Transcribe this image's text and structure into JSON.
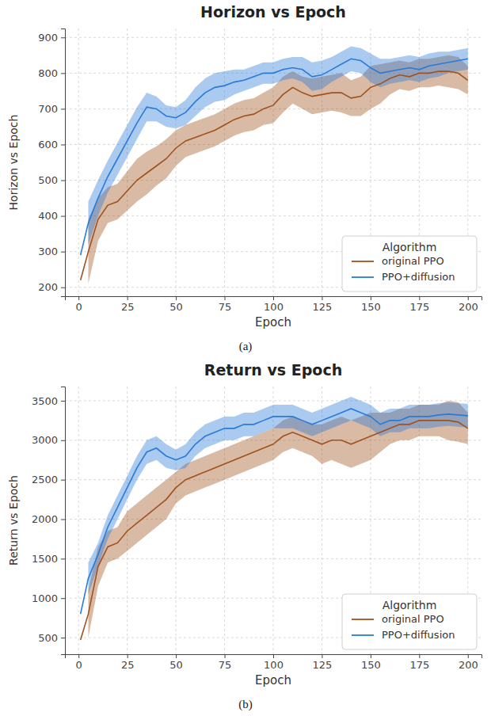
{
  "chart_data": [
    {
      "type": "line",
      "title": "Horizon vs Epoch",
      "x_label": "Epoch",
      "y_label": "Horizon vs Epoch",
      "caption": "(a)",
      "legend_title": "Algorithm",
      "legend": "lower right",
      "grid": true,
      "xlim": [
        -7,
        207
      ],
      "xticks": [
        0,
        25,
        50,
        75,
        100,
        125,
        150,
        175,
        200
      ],
      "ylim": [
        175,
        925
      ],
      "yticks": [
        200,
        300,
        400,
        500,
        600,
        700,
        800,
        900
      ],
      "x": [
        1,
        5,
        10,
        15,
        20,
        25,
        30,
        35,
        40,
        45,
        50,
        55,
        60,
        65,
        70,
        75,
        80,
        85,
        90,
        95,
        100,
        105,
        110,
        115,
        120,
        125,
        130,
        135,
        140,
        145,
        150,
        155,
        160,
        165,
        170,
        175,
        180,
        185,
        190,
        195,
        200
      ],
      "series": [
        {
          "name": "original PPO",
          "color": "#a0521e",
          "values": [
            220,
            300,
            390,
            430,
            440,
            470,
            500,
            520,
            540,
            560,
            590,
            610,
            620,
            630,
            640,
            655,
            670,
            680,
            685,
            700,
            710,
            740,
            760,
            745,
            735,
            740,
            745,
            745,
            730,
            735,
            760,
            770,
            785,
            795,
            790,
            800,
            800,
            805,
            805,
            800,
            780
          ],
          "lower": [
            null,
            210,
            330,
            380,
            390,
            415,
            440,
            460,
            485,
            505,
            540,
            565,
            575,
            585,
            595,
            610,
            625,
            635,
            640,
            655,
            660,
            690,
            715,
            700,
            685,
            690,
            695,
            690,
            680,
            680,
            700,
            715,
            740,
            755,
            750,
            760,
            760,
            765,
            760,
            755,
            740
          ],
          "upper": [
            null,
            390,
            450,
            480,
            490,
            525,
            560,
            580,
            595,
            615,
            640,
            655,
            665,
            675,
            685,
            700,
            715,
            725,
            730,
            745,
            760,
            790,
            805,
            790,
            785,
            790,
            795,
            800,
            780,
            790,
            820,
            825,
            830,
            835,
            830,
            840,
            840,
            845,
            850,
            845,
            820
          ]
        },
        {
          "name": "PPO+diffusion",
          "color": "#2a7ad8",
          "values": [
            290,
            380,
            450,
            510,
            560,
            610,
            660,
            705,
            700,
            680,
            675,
            690,
            720,
            745,
            760,
            765,
            775,
            780,
            790,
            800,
            800,
            810,
            815,
            810,
            790,
            795,
            810,
            825,
            840,
            835,
            815,
            800,
            805,
            810,
            815,
            810,
            820,
            825,
            830,
            835,
            840
          ],
          "lower": [
            null,
            320,
            400,
            465,
            515,
            565,
            615,
            665,
            665,
            650,
            645,
            655,
            680,
            705,
            720,
            725,
            740,
            750,
            760,
            770,
            770,
            780,
            785,
            775,
            750,
            755,
            775,
            790,
            805,
            800,
            775,
            760,
            770,
            775,
            780,
            775,
            785,
            790,
            800,
            805,
            810
          ],
          "upper": [
            null,
            440,
            500,
            555,
            605,
            655,
            705,
            745,
            735,
            710,
            705,
            725,
            760,
            785,
            800,
            805,
            810,
            810,
            820,
            830,
            830,
            840,
            845,
            845,
            830,
            835,
            845,
            860,
            875,
            870,
            855,
            840,
            840,
            845,
            850,
            845,
            855,
            860,
            860,
            865,
            870
          ]
        }
      ]
    },
    {
      "type": "line",
      "title": "Return vs Epoch",
      "x_label": "Epoch",
      "y_label": "Return vs Epoch",
      "caption": "(b)",
      "legend_title": "Algorithm",
      "legend": "lower right",
      "grid": true,
      "xlim": [
        -7,
        207
      ],
      "xticks": [
        0,
        25,
        50,
        75,
        100,
        125,
        150,
        175,
        200
      ],
      "ylim": [
        290,
        3680
      ],
      "yticks": [
        500,
        1000,
        1500,
        2000,
        2500,
        3000,
        3500
      ],
      "x": [
        1,
        5,
        10,
        15,
        20,
        25,
        30,
        35,
        40,
        45,
        50,
        55,
        60,
        65,
        70,
        75,
        80,
        85,
        90,
        95,
        100,
        105,
        110,
        115,
        120,
        125,
        130,
        135,
        140,
        145,
        150,
        155,
        160,
        165,
        170,
        175,
        180,
        185,
        190,
        195,
        200
      ],
      "series": [
        {
          "name": "original PPO",
          "color": "#a0521e",
          "values": [
            470,
            800,
            1400,
            1650,
            1700,
            1850,
            1950,
            2050,
            2150,
            2250,
            2400,
            2500,
            2550,
            2600,
            2650,
            2700,
            2750,
            2800,
            2850,
            2900,
            2950,
            3050,
            3100,
            3050,
            3000,
            2950,
            3000,
            3000,
            2950,
            3000,
            3050,
            3100,
            3150,
            3200,
            3200,
            3250,
            3250,
            3250,
            3250,
            3230,
            3150
          ],
          "lower": [
            null,
            500,
            1150,
            1450,
            1500,
            1600,
            1700,
            1800,
            1900,
            2000,
            2200,
            2300,
            2350,
            2400,
            2450,
            2500,
            2550,
            2600,
            2650,
            2700,
            2750,
            2850,
            2900,
            2850,
            2800,
            2700,
            2750,
            2700,
            2650,
            2700,
            2750,
            2850,
            2950,
            3000,
            3000,
            3050,
            3050,
            3050,
            3000,
            2980,
            2950
          ],
          "upper": [
            null,
            1100,
            1650,
            1850,
            1900,
            2100,
            2200,
            2300,
            2400,
            2500,
            2600,
            2700,
            2750,
            2800,
            2850,
            2900,
            2950,
            3000,
            3050,
            3100,
            3150,
            3250,
            3300,
            3250,
            3200,
            3200,
            3250,
            3300,
            3250,
            3300,
            3350,
            3350,
            3350,
            3400,
            3400,
            3450,
            3450,
            3450,
            3500,
            3480,
            3350
          ]
        },
        {
          "name": "PPO+diffusion",
          "color": "#2a7ad8",
          "values": [
            800,
            1250,
            1550,
            1900,
            2150,
            2400,
            2650,
            2850,
            2900,
            2800,
            2750,
            2800,
            2950,
            3050,
            3100,
            3150,
            3150,
            3200,
            3200,
            3250,
            3300,
            3300,
            3300,
            3250,
            3200,
            3250,
            3300,
            3350,
            3400,
            3350,
            3300,
            3200,
            3250,
            3250,
            3300,
            3300,
            3300,
            3320,
            3330,
            3320,
            3310
          ],
          "lower": [
            null,
            1050,
            1400,
            1750,
            2000,
            2250,
            2500,
            2700,
            2750,
            2650,
            2620,
            2650,
            2800,
            2900,
            2950,
            3000,
            3000,
            3050,
            3050,
            3100,
            3150,
            3150,
            3150,
            3100,
            3050,
            3100,
            3150,
            3200,
            3250,
            3200,
            3150,
            3050,
            3100,
            3100,
            3150,
            3150,
            3150,
            3170,
            3180,
            3170,
            3160
          ],
          "upper": [
            null,
            1450,
            1700,
            2050,
            2300,
            2550,
            2800,
            3000,
            3050,
            2950,
            2880,
            2950,
            3100,
            3200,
            3250,
            3300,
            3300,
            3350,
            3350,
            3400,
            3450,
            3450,
            3450,
            3400,
            3350,
            3400,
            3450,
            3500,
            3550,
            3500,
            3450,
            3350,
            3400,
            3400,
            3450,
            3450,
            3450,
            3470,
            3480,
            3470,
            3460
          ]
        }
      ]
    }
  ]
}
